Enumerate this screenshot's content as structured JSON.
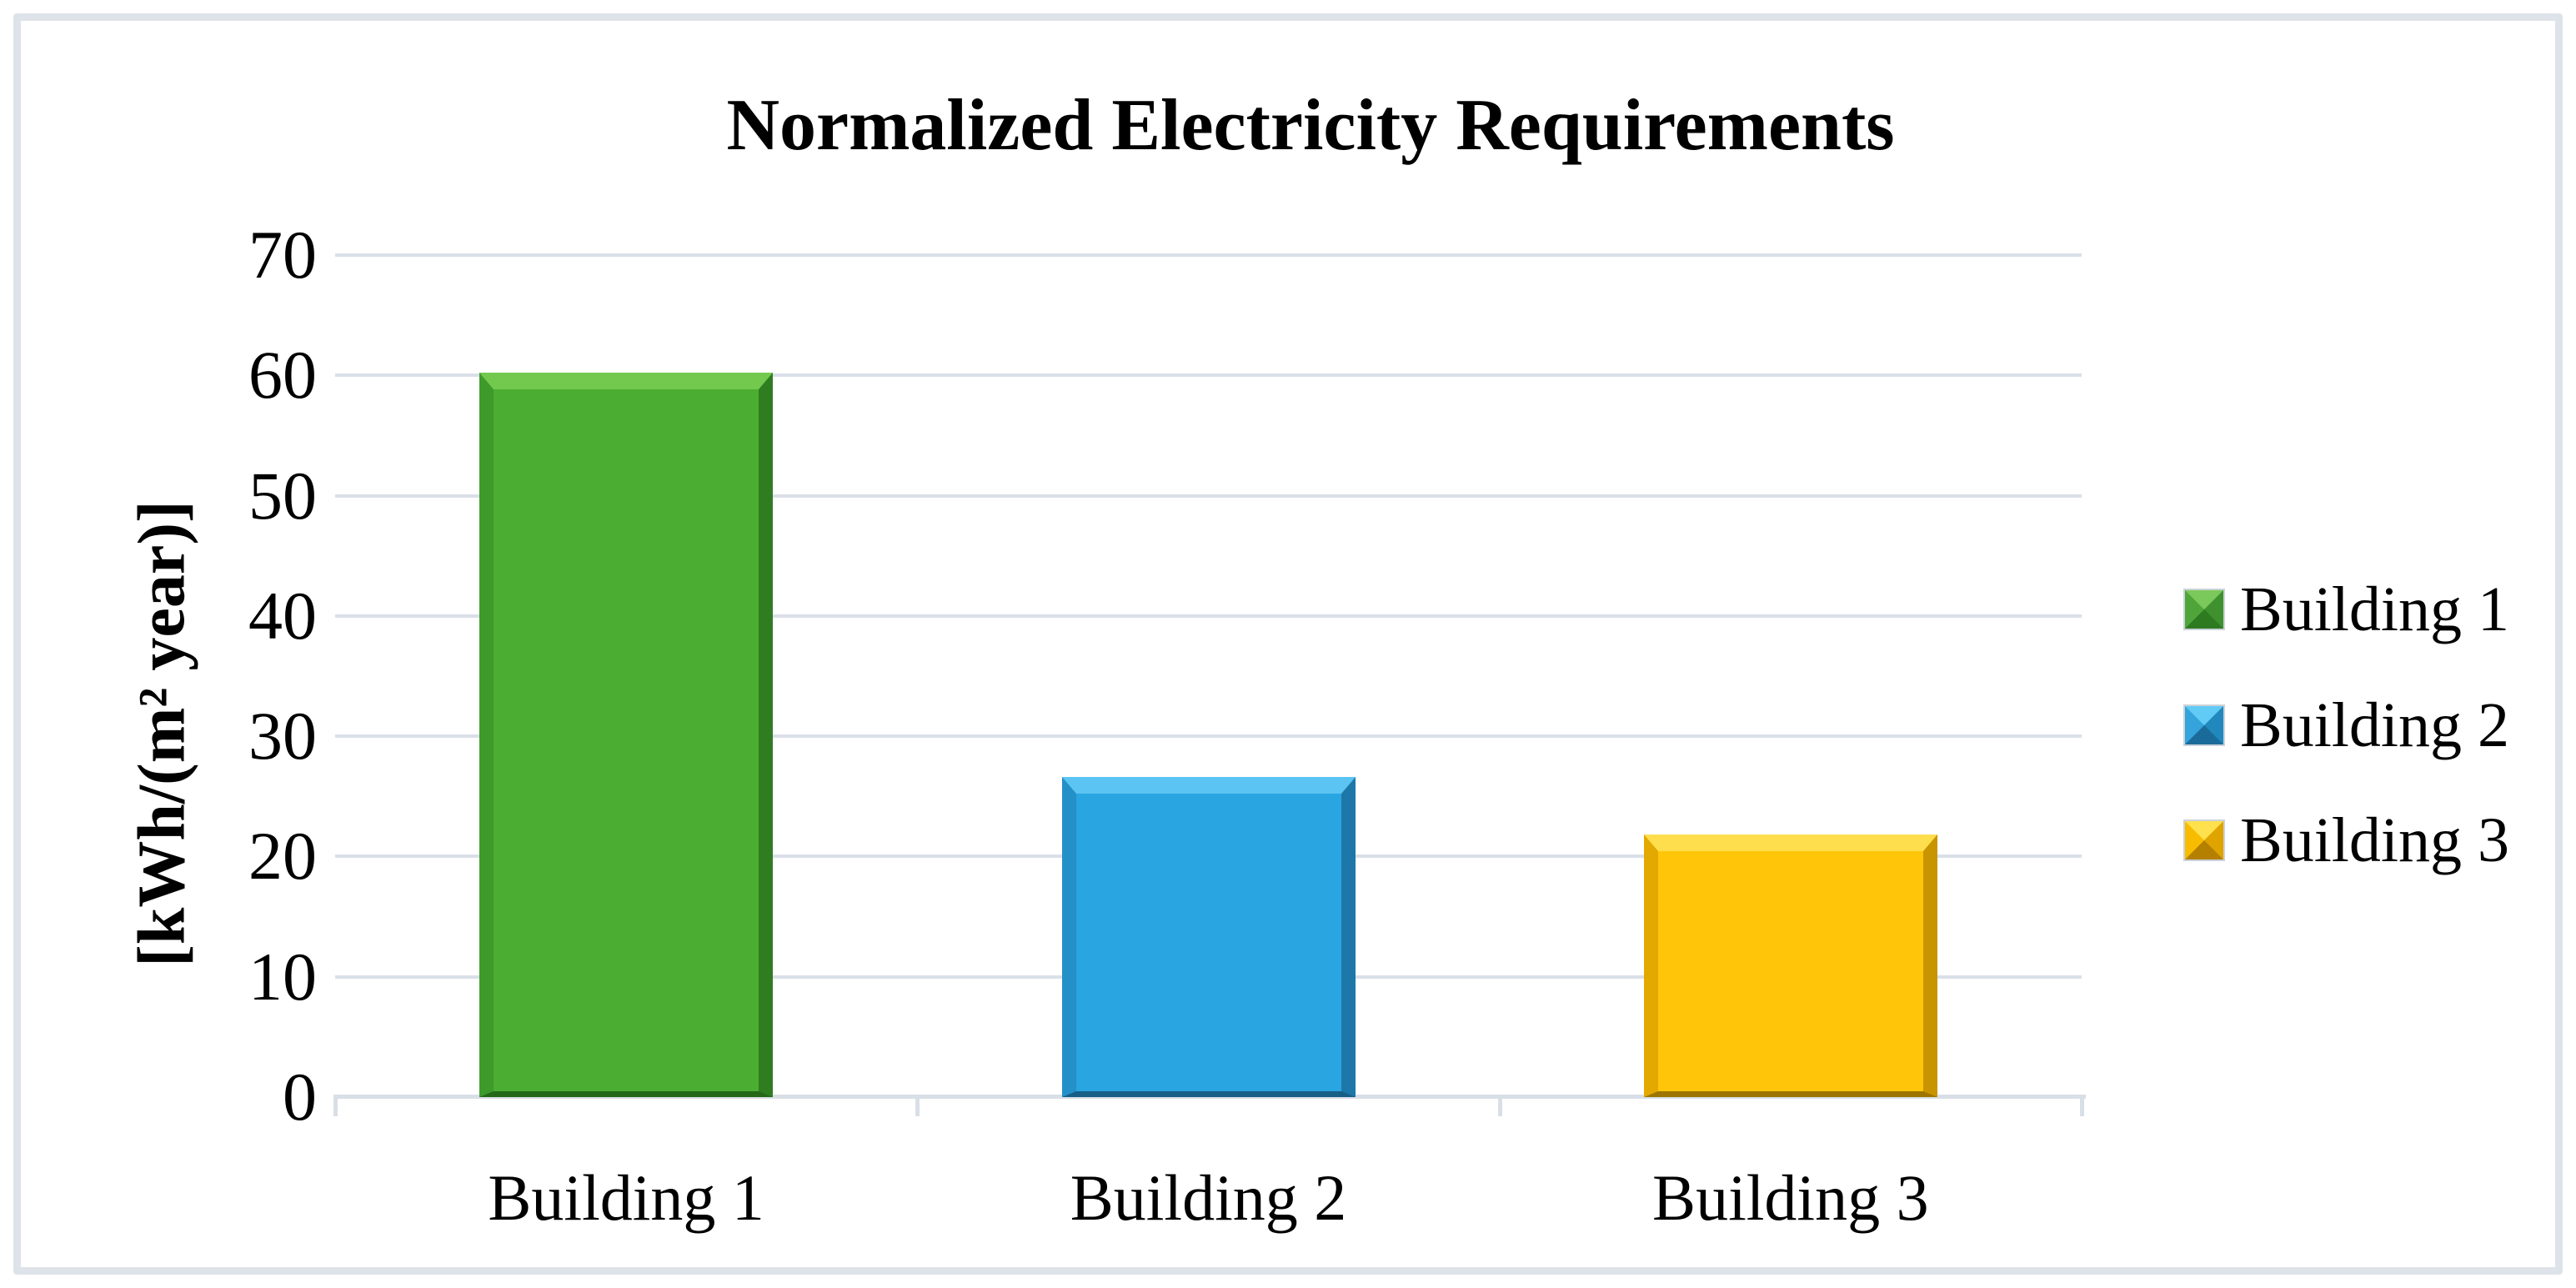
{
  "chart_data": {
    "type": "bar",
    "title": "Normalized Electricity Requirements",
    "ylabel": "[kWh/(m² year)]",
    "xlabel": "",
    "categories": [
      "Building 1",
      "Building 2",
      "Building 3"
    ],
    "values": [
      60.2,
      26.6,
      21.8
    ],
    "series": [
      {
        "name": "Normalized Electricity Requirements",
        "values": [
          60.2,
          26.6,
          21.8
        ]
      }
    ],
    "ylim": [
      0,
      70
    ],
    "yticks": [
      0,
      10,
      20,
      30,
      40,
      50,
      60,
      70
    ],
    "grid": true,
    "legend_position": "right",
    "legend": [
      {
        "label": "Building 1",
        "color": "#4cad33",
        "facets": {
          "top": "#7cc95b",
          "left": "#4fa53a",
          "right": "#3f9130",
          "bottom": "#2e7a20"
        }
      },
      {
        "label": "Building 2",
        "color": "#29a5e1",
        "facets": {
          "top": "#62cbf5",
          "left": "#35a3dc",
          "right": "#2188be",
          "bottom": "#1a6b99"
        }
      },
      {
        "label": "Building 3",
        "color": "#ffc609",
        "facets": {
          "top": "#ffe14d",
          "left": "#f7bc00",
          "right": "#dfa400",
          "bottom": "#b58000"
        }
      }
    ],
    "bar_styles": [
      {
        "body": "#4cad33",
        "top": "#72c94e",
        "left": "#3d9a2b",
        "right": "#2f7d20",
        "bottom": "#256818"
      },
      {
        "body": "#29a5e1",
        "top": "#5bc4f2",
        "left": "#2490c8",
        "right": "#1d77a8",
        "bottom": "#175f87"
      },
      {
        "body": "#ffc609",
        "top": "#ffde4e",
        "left": "#e3a900",
        "right": "#c89400",
        "bottom": "#9e7500"
      }
    ]
  },
  "colors": {
    "background": "#ffffff",
    "figure_border": "#dee3e9",
    "gridline": "#dae0e8",
    "axis_line": "#d9dfe6",
    "text": "#000000"
  }
}
